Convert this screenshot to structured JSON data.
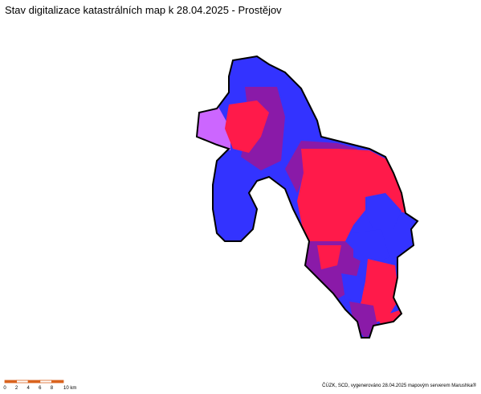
{
  "title": "Stav digitalizace katastrálních map k 28.04.2025 - Prostějov",
  "scale_bar": {
    "labels": [
      "0",
      "2",
      "4",
      "6",
      "8",
      "10 km"
    ]
  },
  "credit": "ČÚZK, SCD, vygenerováno 28.04.2025 mapovým serverem Marushka®"
}
